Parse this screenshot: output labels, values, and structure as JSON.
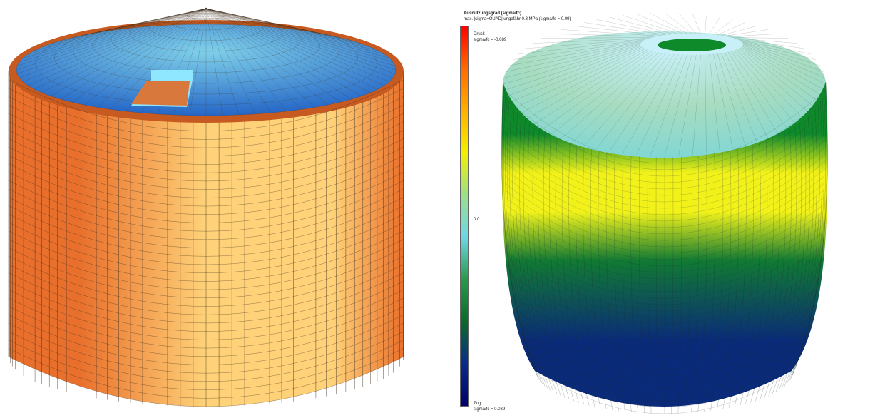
{
  "left_model": {
    "colors": {
      "roof_outer": "#1f5fc4",
      "roof_inner": "#7fd0ea",
      "opening_rim": "#8ee6ff",
      "opening_floor": "#d8783c",
      "wall_center": "#ffd279",
      "wall_edge": "#e8702c",
      "wall_rim": "#c65a20",
      "mesh_line": "#3a2a1a"
    }
  },
  "right_model": {
    "colors": {
      "top_ring": "#c8f0f8",
      "dome_light": "#a8dcc0",
      "dome_outer": "#7cd6d6",
      "band_green": "#0f8a2a",
      "band_yellow": "#f2f21a",
      "lower_green": "#117a33",
      "base_navy": "#0a2a7a",
      "mesh_line": "#1a2a2a"
    }
  },
  "legend": {
    "title": "Ausnutzungsgrad (sigma/fc)",
    "subtitle": "max. |sigma=QUAD| ungefähr 0.3 MPa (sigma/fc = 0.09)",
    "top_label": "Druck",
    "top_value": "sigma/fc = -0.089",
    "mid_value": "0.0",
    "bottom_label": "Zug",
    "bottom_value": "sigma/fc = 0.089",
    "gradient": [
      "#ff0000",
      "#ff6a00",
      "#ffb000",
      "#f4f000",
      "#9ce08a",
      "#6fd6e6",
      "#2a9a4a",
      "#0a6a2a",
      "#0a2a8a",
      "#00006a"
    ]
  }
}
